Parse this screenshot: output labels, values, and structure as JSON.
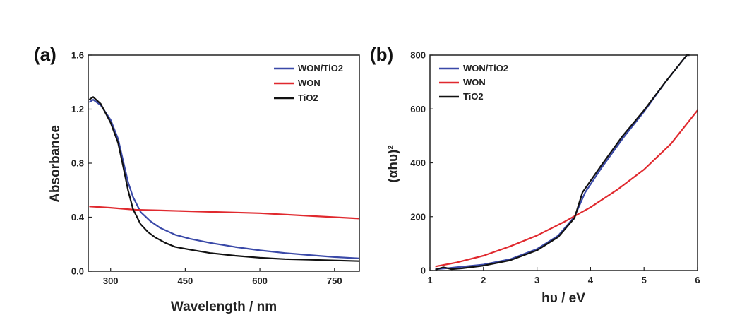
{
  "chart_data": [
    {
      "type": "line",
      "panel_tag": "(a)",
      "xlabel": "Wavelength / nm",
      "ylabel": "Absorbance",
      "xlim": [
        255,
        800
      ],
      "ylim": [
        0,
        1.6
      ],
      "xticks": [
        300,
        450,
        600,
        750
      ],
      "yticks": [
        0.0,
        0.4,
        0.8,
        1.2,
        1.6
      ],
      "legend": "top-right",
      "series": [
        {
          "name": "WON/TiO2",
          "color": "#3a49a8",
          "x": [
            257,
            265,
            280,
            300,
            315,
            325,
            335,
            345,
            360,
            380,
            400,
            430,
            460,
            500,
            550,
            600,
            650,
            700,
            750,
            800
          ],
          "y": [
            1.25,
            1.27,
            1.23,
            1.12,
            0.98,
            0.82,
            0.66,
            0.55,
            0.44,
            0.37,
            0.32,
            0.27,
            0.24,
            0.21,
            0.18,
            0.155,
            0.135,
            0.12,
            0.105,
            0.095
          ]
        },
        {
          "name": "WON",
          "color": "#e0292e",
          "x": [
            257,
            300,
            350,
            400,
            450,
            500,
            550,
            600,
            650,
            700,
            750,
            800
          ],
          "y": [
            0.48,
            0.47,
            0.455,
            0.45,
            0.445,
            0.44,
            0.435,
            0.43,
            0.42,
            0.41,
            0.4,
            0.39
          ]
        },
        {
          "name": "TiO2",
          "color": "#111111",
          "x": [
            257,
            265,
            280,
            300,
            315,
            325,
            335,
            345,
            360,
            375,
            390,
            410,
            430,
            460,
            500,
            550,
            600,
            650,
            700,
            750,
            800
          ],
          "y": [
            1.27,
            1.29,
            1.24,
            1.1,
            0.95,
            0.78,
            0.6,
            0.46,
            0.35,
            0.29,
            0.25,
            0.21,
            0.18,
            0.16,
            0.135,
            0.115,
            0.1,
            0.09,
            0.085,
            0.08,
            0.075
          ]
        }
      ]
    },
    {
      "type": "line",
      "panel_tag": "(b)",
      "xlabel": "hυ / eV",
      "ylabel": "(αhυ)²",
      "xlim": [
        1,
        6
      ],
      "ylim": [
        0,
        800
      ],
      "xticks": [
        1,
        2,
        3,
        4,
        5,
        6
      ],
      "yticks": [
        0,
        200,
        400,
        600,
        800
      ],
      "legend": "top-left",
      "series": [
        {
          "name": "WON/TiO2",
          "color": "#3a49a8",
          "x": [
            1.1,
            1.3,
            1.5,
            2.0,
            2.5,
            3.0,
            3.4,
            3.7,
            3.9,
            4.2,
            4.6,
            5.0,
            5.4,
            5.8,
            5.85
          ],
          "y": [
            5,
            8,
            12,
            22,
            42,
            80,
            130,
            200,
            290,
            380,
            490,
            590,
            700,
            800,
            800
          ]
        },
        {
          "name": "WON",
          "color": "#e0292e",
          "x": [
            1.1,
            1.5,
            2.0,
            2.5,
            3.0,
            3.5,
            4.0,
            4.5,
            5.0,
            5.5,
            6.0
          ],
          "y": [
            15,
            30,
            55,
            90,
            130,
            180,
            235,
            300,
            375,
            470,
            595
          ]
        },
        {
          "name": "TiO2",
          "color": "#111111",
          "x": [
            1.1,
            1.25,
            1.3,
            1.4,
            1.6,
            2.0,
            2.5,
            3.0,
            3.4,
            3.7,
            3.85,
            4.2,
            4.6,
            5.0,
            5.4,
            5.8,
            5.85
          ],
          "y": [
            3,
            12,
            10,
            5,
            8,
            18,
            38,
            75,
            125,
            195,
            290,
            390,
            500,
            595,
            700,
            800,
            800
          ]
        }
      ]
    }
  ]
}
